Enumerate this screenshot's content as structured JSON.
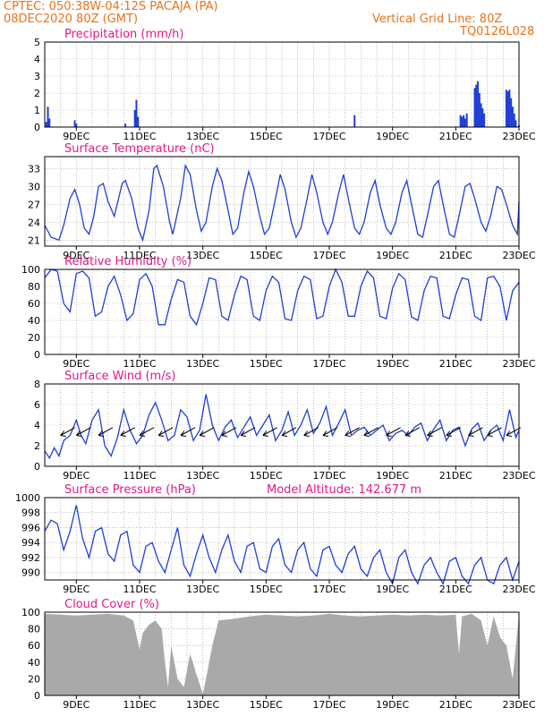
{
  "header": {
    "line1_left": "CPTEC:  050:38W-04:12S  PACAJA (PA)",
    "line2_left": "08DEC2020 80Z (GMT)",
    "line1_right": "Vertical Grid Line: 80Z",
    "line2_right": "TQ0126L028"
  },
  "colors": {
    "header": "#e8731a",
    "title": "#e0198a",
    "series": "#1f3fd6",
    "cloud": "#a9a9a9",
    "wind_arrow": "#000000",
    "grid": "#9a9a9a"
  },
  "x_axis": {
    "ticks": [
      "9DEC",
      "11DEC",
      "13DEC",
      "15DEC",
      "17DEC",
      "19DEC",
      "21DEC",
      "23DEC"
    ]
  },
  "chart_data": [
    {
      "id": "precip",
      "type": "bar",
      "title": "Precipitation (mm/h)",
      "ylim": [
        0,
        5
      ],
      "yticks": [
        "0",
        "1",
        "2",
        "3",
        "4",
        "5"
      ],
      "grid": true,
      "x_start_day": 8.0,
      "x": [
        8.05,
        8.1,
        8.15,
        8.95,
        9.0,
        10.85,
        10.9,
        10.95,
        10.55,
        17.8,
        21.15,
        21.2,
        21.25,
        21.3,
        21.35,
        21.6,
        21.65,
        21.7,
        21.75,
        21.8,
        21.85,
        21.9,
        22.6,
        22.65,
        22.7,
        22.75,
        22.8,
        22.85,
        22.9,
        23.0
      ],
      "values": [
        0.3,
        1.2,
        0.5,
        0.4,
        0.2,
        1.0,
        1.6,
        0.6,
        0.2,
        0.7,
        0.7,
        0.6,
        0.7,
        0.5,
        0.8,
        2.3,
        2.5,
        2.7,
        2.0,
        1.4,
        1.1,
        0.8,
        2.2,
        2.1,
        2.2,
        1.7,
        1.2,
        0.8,
        0.4,
        0.1
      ]
    },
    {
      "id": "temp",
      "type": "line",
      "title": "Surface Temperature (nC)",
      "ylim": [
        20,
        35
      ],
      "yticks": [
        "21",
        "24",
        "27",
        "30",
        "33"
      ],
      "grid": true,
      "x_start_day": 8.0,
      "x": [
        8.0,
        8.2,
        8.45,
        8.6,
        8.8,
        8.95,
        9.1,
        9.25,
        9.4,
        9.55,
        9.7,
        9.85,
        10.0,
        10.2,
        10.45,
        10.55,
        10.75,
        10.95,
        11.1,
        11.3,
        11.45,
        11.55,
        11.75,
        11.95,
        12.05,
        12.3,
        12.45,
        12.6,
        12.8,
        12.95,
        13.1,
        13.3,
        13.45,
        13.6,
        13.8,
        13.95,
        14.1,
        14.3,
        14.45,
        14.6,
        14.8,
        14.95,
        15.1,
        15.3,
        15.45,
        15.6,
        15.8,
        15.95,
        16.1,
        16.3,
        16.45,
        16.6,
        16.8,
        16.95,
        17.1,
        17.3,
        17.45,
        17.6,
        17.8,
        17.95,
        18.1,
        18.3,
        18.45,
        18.6,
        18.8,
        18.95,
        19.1,
        19.3,
        19.45,
        19.6,
        19.8,
        19.95,
        20.1,
        20.3,
        20.45,
        20.6,
        20.8,
        20.95,
        21.1,
        21.3,
        21.45,
        21.6,
        21.8,
        21.95,
        22.1,
        22.3,
        22.45,
        22.6,
        22.8,
        22.95,
        23.0
      ],
      "values": [
        23.5,
        21.5,
        21.0,
        23.5,
        28.0,
        29.5,
        27.0,
        23.0,
        22.0,
        25.0,
        30.0,
        30.5,
        27.5,
        25.0,
        30.5,
        31.0,
        28.0,
        23.0,
        21.0,
        26.0,
        33.0,
        33.5,
        30.0,
        24.0,
        22.0,
        28.0,
        33.5,
        32.0,
        26.0,
        22.5,
        24.0,
        30.0,
        33.0,
        31.0,
        26.0,
        22.0,
        23.0,
        29.0,
        32.5,
        30.0,
        25.0,
        22.0,
        23.0,
        28.0,
        32.0,
        29.5,
        24.0,
        21.5,
        23.0,
        28.0,
        32.0,
        29.0,
        24.0,
        22.0,
        24.0,
        29.0,
        32.0,
        28.0,
        23.0,
        22.0,
        24.0,
        29.0,
        31.0,
        27.0,
        23.0,
        22.0,
        24.0,
        29.0,
        31.0,
        27.0,
        22.0,
        21.5,
        25.0,
        30.0,
        31.0,
        27.0,
        22.0,
        21.5,
        25.0,
        30.0,
        30.5,
        28.0,
        24.0,
        22.5,
        25.0,
        30.0,
        29.5,
        27.0,
        23.5,
        22.0,
        27.5
      ]
    },
    {
      "id": "rh",
      "type": "line",
      "title": "Relative Humidity (%)",
      "ylim": [
        0,
        100
      ],
      "yticks": [
        "0",
        "20",
        "40",
        "60",
        "80",
        "100"
      ],
      "grid": true,
      "x_start_day": 8.0,
      "x": [
        8.0,
        8.2,
        8.4,
        8.6,
        8.8,
        9.0,
        9.2,
        9.4,
        9.6,
        9.8,
        10.0,
        10.2,
        10.4,
        10.6,
        10.8,
        11.0,
        11.2,
        11.4,
        11.6,
        11.8,
        12.0,
        12.2,
        12.4,
        12.6,
        12.8,
        13.0,
        13.2,
        13.4,
        13.6,
        13.8,
        14.0,
        14.2,
        14.4,
        14.6,
        14.8,
        15.0,
        15.2,
        15.4,
        15.6,
        15.8,
        16.0,
        16.2,
        16.4,
        16.6,
        16.8,
        17.0,
        17.2,
        17.4,
        17.6,
        17.8,
        18.0,
        18.2,
        18.4,
        18.6,
        18.8,
        19.0,
        19.2,
        19.4,
        19.6,
        19.8,
        20.0,
        20.2,
        20.4,
        20.6,
        20.8,
        21.0,
        21.2,
        21.4,
        21.6,
        21.8,
        22.0,
        22.2,
        22.4,
        22.6,
        22.8,
        23.0
      ],
      "values": [
        90,
        100,
        98,
        60,
        50,
        95,
        98,
        90,
        45,
        50,
        80,
        92,
        70,
        40,
        48,
        88,
        95,
        80,
        35,
        35,
        65,
        88,
        85,
        45,
        35,
        60,
        90,
        88,
        45,
        40,
        70,
        92,
        88,
        45,
        40,
        75,
        92,
        85,
        42,
        40,
        75,
        92,
        88,
        42,
        45,
        80,
        100,
        85,
        45,
        45,
        80,
        98,
        90,
        45,
        42,
        78,
        95,
        88,
        44,
        40,
        75,
        92,
        90,
        45,
        42,
        70,
        90,
        88,
        45,
        40,
        90,
        92,
        80,
        40,
        75,
        85
      ]
    },
    {
      "id": "wind",
      "type": "line",
      "title": "Surface Wind (m/s)",
      "ylim": [
        0,
        8
      ],
      "yticks": [
        "0",
        "2",
        "4",
        "6",
        "8"
      ],
      "grid": true,
      "x_start_day": 8.0,
      "x": [
        8.0,
        8.15,
        8.3,
        8.45,
        8.6,
        8.8,
        9.0,
        9.15,
        9.3,
        9.5,
        9.7,
        9.9,
        10.1,
        10.3,
        10.5,
        10.7,
        10.9,
        11.1,
        11.3,
        11.5,
        11.7,
        11.9,
        12.1,
        12.3,
        12.5,
        12.7,
        12.9,
        13.1,
        13.3,
        13.5,
        13.7,
        13.9,
        14.1,
        14.3,
        14.5,
        14.7,
        14.9,
        15.1,
        15.3,
        15.5,
        15.7,
        15.9,
        16.1,
        16.3,
        16.5,
        16.7,
        16.9,
        17.1,
        17.3,
        17.5,
        17.7,
        17.9,
        18.1,
        18.3,
        18.5,
        18.7,
        18.9,
        19.1,
        19.3,
        19.5,
        19.7,
        19.9,
        20.1,
        20.3,
        20.5,
        20.7,
        20.9,
        21.1,
        21.3,
        21.5,
        21.7,
        21.9,
        22.1,
        22.3,
        22.5,
        22.7,
        22.9,
        23.0
      ],
      "values": [
        1.5,
        0.8,
        1.8,
        1.0,
        2.5,
        3.0,
        4.5,
        3.0,
        2.2,
        4.5,
        5.5,
        2.0,
        1.0,
        2.8,
        5.5,
        3.5,
        2.2,
        3.0,
        5.0,
        6.2,
        4.5,
        2.5,
        3.0,
        5.5,
        4.8,
        2.5,
        3.5,
        7.0,
        4.0,
        2.5,
        3.8,
        4.5,
        2.8,
        3.8,
        4.8,
        3.0,
        4.0,
        5.0,
        2.5,
        3.5,
        5.3,
        3.0,
        4.0,
        5.5,
        3.2,
        4.2,
        5.8,
        3.0,
        4.2,
        5.5,
        3.0,
        3.5,
        3.8,
        3.0,
        3.5,
        4.0,
        2.5,
        3.2,
        3.5,
        3.0,
        3.8,
        4.2,
        2.5,
        3.6,
        4.5,
        2.5,
        3.5,
        3.8,
        2.0,
        3.6,
        4.2,
        2.5,
        3.5,
        4.0,
        2.5,
        5.5,
        2.8,
        3.5
      ]
    },
    {
      "id": "pres",
      "type": "line",
      "title": "Surface Pressure (hPa)",
      "annotation": "Model Altitude: 142.677 m",
      "ylim": [
        989,
        1000
      ],
      "yticks": [
        "990",
        "992",
        "994",
        "996",
        "998",
        "1000"
      ],
      "grid": true,
      "x_start_day": 8.0,
      "x": [
        8.0,
        8.2,
        8.4,
        8.6,
        8.8,
        9.0,
        9.2,
        9.4,
        9.6,
        9.8,
        10.0,
        10.2,
        10.4,
        10.6,
        10.8,
        11.0,
        11.2,
        11.4,
        11.6,
        11.8,
        12.0,
        12.2,
        12.4,
        12.6,
        12.8,
        13.0,
        13.2,
        13.4,
        13.6,
        13.8,
        14.0,
        14.2,
        14.4,
        14.6,
        14.8,
        15.0,
        15.2,
        15.4,
        15.6,
        15.8,
        16.0,
        16.2,
        16.4,
        16.6,
        16.8,
        17.0,
        17.2,
        17.4,
        17.6,
        17.8,
        18.0,
        18.2,
        18.4,
        18.6,
        18.8,
        19.0,
        19.2,
        19.4,
        19.6,
        19.8,
        20.0,
        20.2,
        20.4,
        20.6,
        20.8,
        21.0,
        21.2,
        21.4,
        21.6,
        21.8,
        22.0,
        22.2,
        22.4,
        22.6,
        22.8,
        23.0
      ],
      "values": [
        995.5,
        997.0,
        996.5,
        993.0,
        995.5,
        999.0,
        994.5,
        992.0,
        995.5,
        996.0,
        992.5,
        991.5,
        995.0,
        995.5,
        991.0,
        990.0,
        993.5,
        994.0,
        991.5,
        990.0,
        993.0,
        996.0,
        991.0,
        989.5,
        992.5,
        995.0,
        992.0,
        990.0,
        993.0,
        995.0,
        991.5,
        990.0,
        993.5,
        994.0,
        990.5,
        990.0,
        993.5,
        994.5,
        991.0,
        990.0,
        993.0,
        994.0,
        990.5,
        989.5,
        993.0,
        993.5,
        991.0,
        990.0,
        992.5,
        993.5,
        990.5,
        989.5,
        992.0,
        993.0,
        990.0,
        988.5,
        992.0,
        993.0,
        990.0,
        988.5,
        991.0,
        992.0,
        990.0,
        988.5,
        991.5,
        992.0,
        989.5,
        988.5,
        991.0,
        992.0,
        989.0,
        988.5,
        991.0,
        992.0,
        989.0,
        991.5
      ]
    },
    {
      "id": "cloud",
      "type": "area",
      "title": "Cloud Cover (%)",
      "ylim": [
        0,
        100
      ],
      "yticks": [
        "0",
        "20",
        "40",
        "60",
        "80",
        "100"
      ],
      "grid": true,
      "x_start_day": 8.0,
      "x": [
        8.0,
        8.5,
        9.0,
        9.5,
        10.0,
        10.5,
        10.8,
        11.0,
        11.1,
        11.3,
        11.5,
        11.7,
        11.8,
        11.9,
        12.0,
        12.2,
        12.4,
        12.6,
        12.8,
        13.0,
        13.1,
        13.3,
        13.5,
        14.0,
        14.5,
        15.0,
        15.5,
        16.0,
        16.5,
        17.0,
        17.5,
        18.0,
        18.5,
        19.0,
        19.5,
        20.0,
        20.5,
        21.0,
        21.1,
        21.2,
        21.5,
        21.8,
        22.0,
        22.2,
        22.4,
        22.6,
        22.8,
        23.0
      ],
      "values": [
        98,
        97,
        96,
        97,
        98,
        96,
        90,
        55,
        75,
        85,
        90,
        80,
        40,
        10,
        60,
        20,
        10,
        50,
        25,
        2,
        20,
        60,
        90,
        92,
        95,
        97,
        96,
        95,
        96,
        98,
        96,
        95,
        96,
        97,
        96,
        97,
        96,
        97,
        50,
        95,
        98,
        90,
        60,
        95,
        70,
        60,
        20,
        98
      ]
    }
  ],
  "wind_vectors": [
    {
      "day": 8.5,
      "dx": 1,
      "dy": -1
    },
    {
      "day": 9.0,
      "dx": 1,
      "dy": -1
    },
    {
      "day": 9.7,
      "dx": 1,
      "dy": -1
    },
    {
      "day": 10.4,
      "dx": 1,
      "dy": -1
    },
    {
      "day": 11.0,
      "dx": 1,
      "dy": -1
    },
    {
      "day": 11.6,
      "dx": 1,
      "dy": -1
    },
    {
      "day": 12.3,
      "dx": 1,
      "dy": -1
    },
    {
      "day": 12.9,
      "dx": 1,
      "dy": -1
    },
    {
      "day": 13.6,
      "dx": 1,
      "dy": -1
    },
    {
      "day": 14.2,
      "dx": 1,
      "dy": -1
    },
    {
      "day": 14.9,
      "dx": 1,
      "dy": -1
    },
    {
      "day": 15.5,
      "dx": 1,
      "dy": -1
    },
    {
      "day": 16.2,
      "dx": 1,
      "dy": -1
    },
    {
      "day": 16.8,
      "dx": 1,
      "dy": -1
    },
    {
      "day": 17.5,
      "dx": 1,
      "dy": -1
    },
    {
      "day": 18.1,
      "dx": 1,
      "dy": -1
    },
    {
      "day": 18.8,
      "dx": 1,
      "dy": -1
    },
    {
      "day": 19.4,
      "dx": 1,
      "dy": -1
    },
    {
      "day": 20.1,
      "dx": 1,
      "dy": -1
    },
    {
      "day": 20.7,
      "dx": 1,
      "dy": -1
    },
    {
      "day": 21.4,
      "dx": 1,
      "dy": -1
    },
    {
      "day": 22.0,
      "dx": 1,
      "dy": -1
    },
    {
      "day": 22.6,
      "dx": 1,
      "dy": -1
    }
  ]
}
